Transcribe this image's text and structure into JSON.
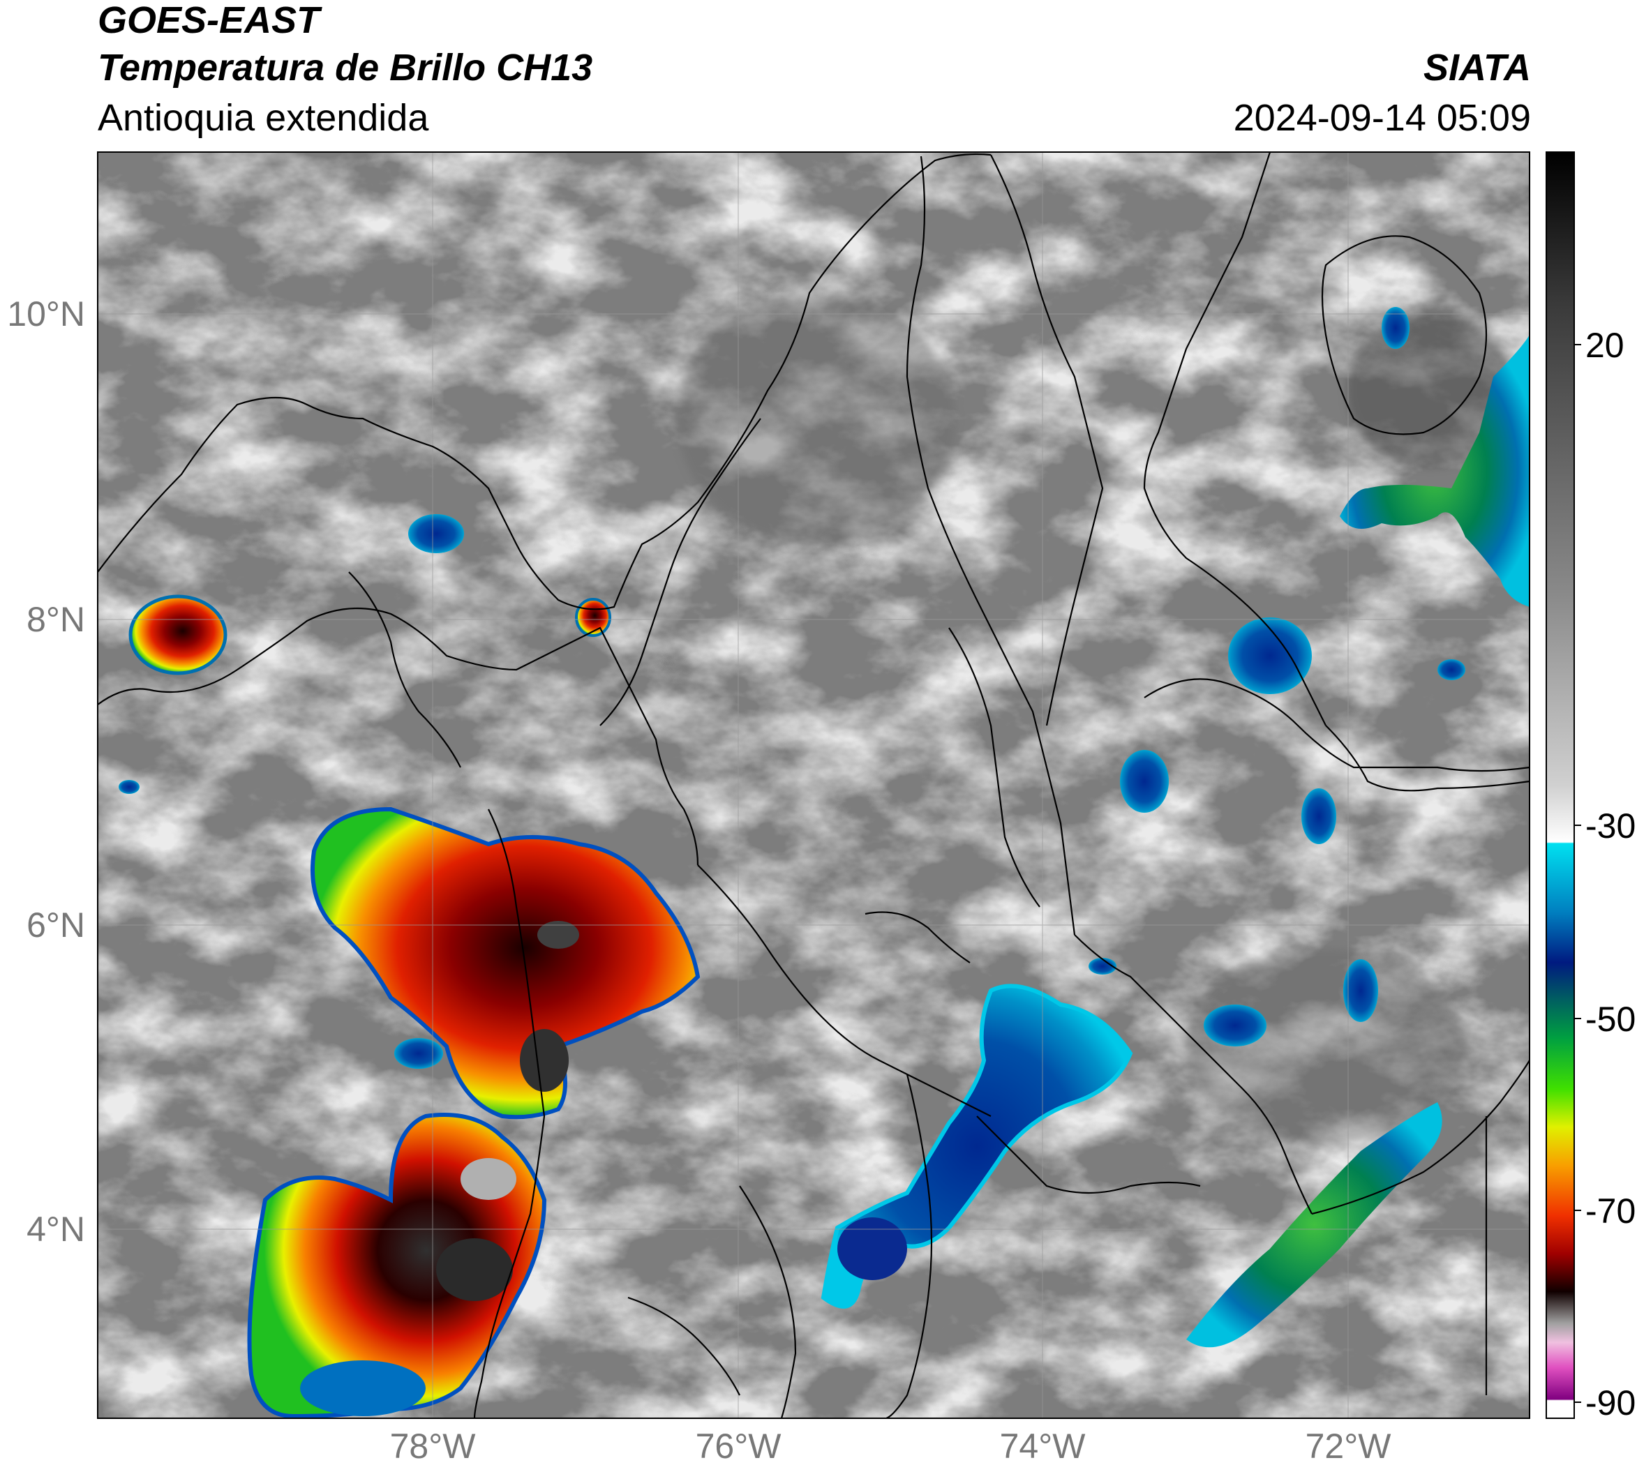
{
  "header": {
    "satellite": "GOES-EAST",
    "product": "Temperatura de Brillo CH13",
    "region": "Antioquia extendida",
    "agency": "SIATA",
    "timestamp": "2024-09-14 05:09"
  },
  "map": {
    "lat_ticks": [
      "10°N",
      "8°N",
      "6°N",
      "4°N"
    ],
    "lon_ticks": [
      "78°W",
      "76°W",
      "74°W",
      "72°W"
    ],
    "lon_range": [
      -80.2,
      -70.8
    ],
    "lat_range": [
      2.8,
      11.05
    ]
  },
  "colorbar": {
    "tick_labels": [
      "20",
      "-30",
      "-50",
      "-70",
      "-90"
    ],
    "range": [
      -92,
      30
    ],
    "palette_note": "grayscale warm → cyan/blue/green/yellow/red/black/pink/purple cold"
  },
  "colors": {
    "background": "#ffffff",
    "map_gray": "#7d7d7d",
    "cloud_white": "#e6e6e6",
    "cyan": "#00c0e0",
    "blue": "#0033a0",
    "green": "#20d020",
    "yellow": "#f0e000",
    "orange": "#f07800",
    "red": "#d81010",
    "dark": "#200000",
    "pink": "#e060c0",
    "purple": "#700070"
  }
}
